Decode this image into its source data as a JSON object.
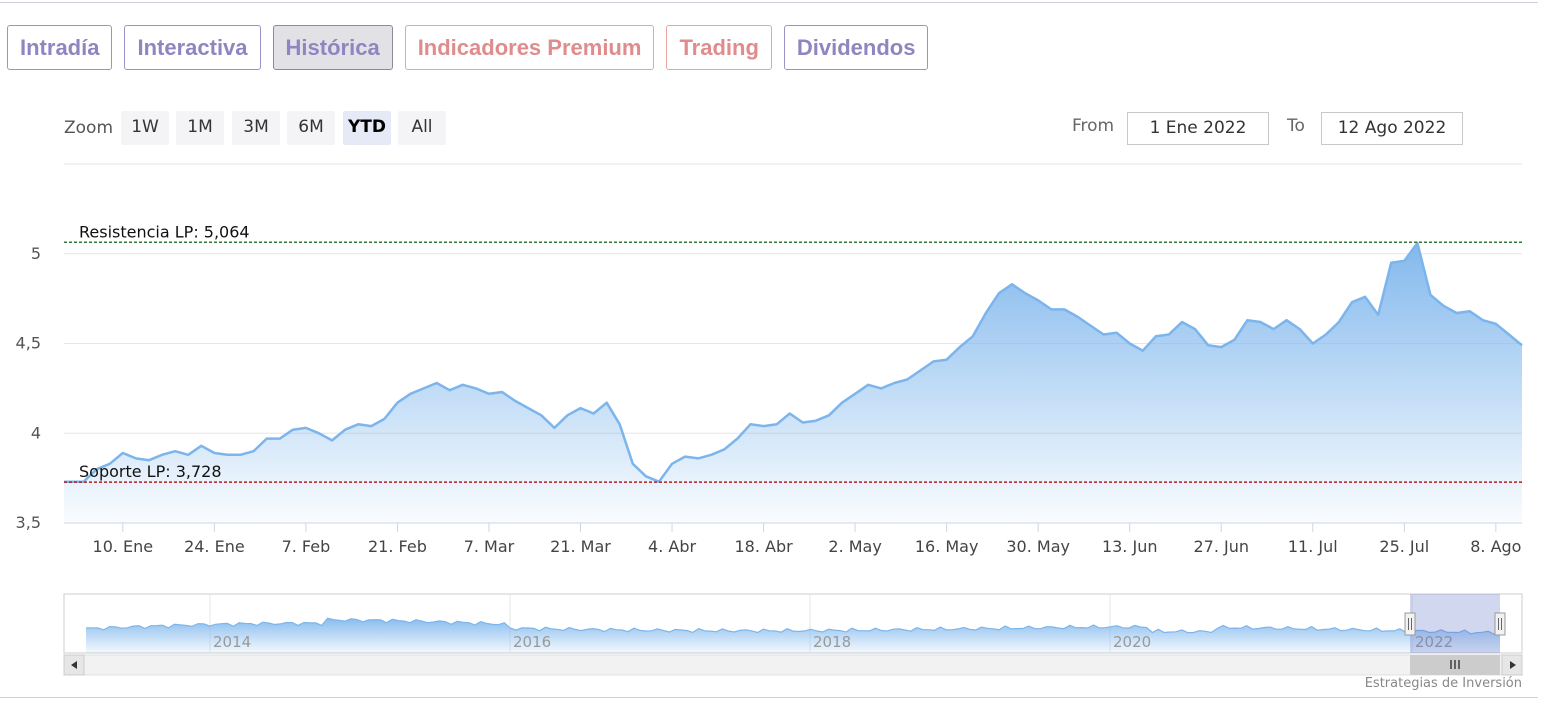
{
  "tabs": [
    {
      "label": "Intradía",
      "active": false,
      "premium": false
    },
    {
      "label": "Interactiva",
      "active": false,
      "premium": false
    },
    {
      "label": "Histórica",
      "active": true,
      "premium": false
    },
    {
      "label": "Indicadores Premium",
      "active": false,
      "premium": true
    },
    {
      "label": "Trading",
      "active": false,
      "premium": true
    },
    {
      "label": "Dividendos",
      "active": false,
      "premium": false
    }
  ],
  "zoom": {
    "label": "Zoom",
    "options": [
      "1W",
      "1M",
      "3M",
      "6M",
      "YTD",
      "All"
    ],
    "selected": "YTD"
  },
  "range": {
    "from_label": "From",
    "from_value": "1 Ene 2022",
    "to_label": "To",
    "to_value": "12 Ago 2022"
  },
  "credits": "Estrategias de Inversión",
  "colors": {
    "series": "#7cb5ec",
    "resistance": "#2e7d32",
    "support": "#b71c1c",
    "tab_text": "#8d86c0",
    "tab_premium": "#e08c8c"
  },
  "chart_data": {
    "type": "area",
    "title": "",
    "xlabel": "",
    "ylabel": "",
    "ylim": [
      3.5,
      5.5
    ],
    "yticks": [
      {
        "value": 3.5,
        "label": "3,5"
      },
      {
        "value": 4.0,
        "label": "4"
      },
      {
        "value": 4.5,
        "label": "4,5"
      },
      {
        "value": 5.0,
        "label": "5"
      }
    ],
    "xlim": [
      "2022-01-01",
      "2022-08-12"
    ],
    "xticks": [
      {
        "date": "2022-01-10",
        "label": "10. Ene"
      },
      {
        "date": "2022-01-24",
        "label": "24. Ene"
      },
      {
        "date": "2022-02-07",
        "label": "7. Feb"
      },
      {
        "date": "2022-02-21",
        "label": "21. Feb"
      },
      {
        "date": "2022-03-07",
        "label": "7. Mar"
      },
      {
        "date": "2022-03-21",
        "label": "21. Mar"
      },
      {
        "date": "2022-04-04",
        "label": "4. Abr"
      },
      {
        "date": "2022-04-18",
        "label": "18. Abr"
      },
      {
        "date": "2022-05-02",
        "label": "2. May"
      },
      {
        "date": "2022-05-16",
        "label": "16. May"
      },
      {
        "date": "2022-05-30",
        "label": "30. May"
      },
      {
        "date": "2022-06-13",
        "label": "13. Jun"
      },
      {
        "date": "2022-06-27",
        "label": "27. Jun"
      },
      {
        "date": "2022-07-11",
        "label": "11. Jul"
      },
      {
        "date": "2022-07-25",
        "label": "25. Jul"
      },
      {
        "date": "2022-08-08",
        "label": "8. Ago"
      }
    ],
    "grid": true,
    "series": [
      {
        "name": "",
        "points": [
          [
            "2022-01-01",
            3.73
          ],
          [
            "2022-01-04",
            3.73
          ],
          [
            "2022-01-06",
            3.8
          ],
          [
            "2022-01-08",
            3.83
          ],
          [
            "2022-01-10",
            3.89
          ],
          [
            "2022-01-12",
            3.86
          ],
          [
            "2022-01-14",
            3.85
          ],
          [
            "2022-01-16",
            3.88
          ],
          [
            "2022-01-18",
            3.9
          ],
          [
            "2022-01-20",
            3.88
          ],
          [
            "2022-01-22",
            3.93
          ],
          [
            "2022-01-24",
            3.89
          ],
          [
            "2022-01-26",
            3.88
          ],
          [
            "2022-01-28",
            3.88
          ],
          [
            "2022-01-30",
            3.9
          ],
          [
            "2022-02-01",
            3.97
          ],
          [
            "2022-02-03",
            3.97
          ],
          [
            "2022-02-05",
            4.02
          ],
          [
            "2022-02-07",
            4.03
          ],
          [
            "2022-02-09",
            4.0
          ],
          [
            "2022-02-11",
            3.96
          ],
          [
            "2022-02-13",
            4.02
          ],
          [
            "2022-02-15",
            4.05
          ],
          [
            "2022-02-17",
            4.04
          ],
          [
            "2022-02-19",
            4.08
          ],
          [
            "2022-02-21",
            4.17
          ],
          [
            "2022-02-23",
            4.22
          ],
          [
            "2022-02-25",
            4.25
          ],
          [
            "2022-02-27",
            4.28
          ],
          [
            "2022-03-01",
            4.24
          ],
          [
            "2022-03-03",
            4.27
          ],
          [
            "2022-03-05",
            4.25
          ],
          [
            "2022-03-07",
            4.22
          ],
          [
            "2022-03-09",
            4.23
          ],
          [
            "2022-03-11",
            4.18
          ],
          [
            "2022-03-13",
            4.14
          ],
          [
            "2022-03-15",
            4.1
          ],
          [
            "2022-03-17",
            4.03
          ],
          [
            "2022-03-19",
            4.1
          ],
          [
            "2022-03-21",
            4.14
          ],
          [
            "2022-03-23",
            4.11
          ],
          [
            "2022-03-25",
            4.17
          ],
          [
            "2022-03-27",
            4.05
          ],
          [
            "2022-03-29",
            3.83
          ],
          [
            "2022-03-31",
            3.76
          ],
          [
            "2022-04-02",
            3.73
          ],
          [
            "2022-04-04",
            3.83
          ],
          [
            "2022-04-06",
            3.87
          ],
          [
            "2022-04-08",
            3.86
          ],
          [
            "2022-04-10",
            3.88
          ],
          [
            "2022-04-12",
            3.91
          ],
          [
            "2022-04-14",
            3.97
          ],
          [
            "2022-04-16",
            4.05
          ],
          [
            "2022-04-18",
            4.04
          ],
          [
            "2022-04-20",
            4.05
          ],
          [
            "2022-04-22",
            4.11
          ],
          [
            "2022-04-24",
            4.06
          ],
          [
            "2022-04-26",
            4.07
          ],
          [
            "2022-04-28",
            4.1
          ],
          [
            "2022-04-30",
            4.17
          ],
          [
            "2022-05-02",
            4.22
          ],
          [
            "2022-05-04",
            4.27
          ],
          [
            "2022-05-06",
            4.25
          ],
          [
            "2022-05-08",
            4.28
          ],
          [
            "2022-05-10",
            4.3
          ],
          [
            "2022-05-12",
            4.35
          ],
          [
            "2022-05-14",
            4.4
          ],
          [
            "2022-05-16",
            4.41
          ],
          [
            "2022-05-18",
            4.48
          ],
          [
            "2022-05-20",
            4.54
          ],
          [
            "2022-05-22",
            4.67
          ],
          [
            "2022-05-24",
            4.78
          ],
          [
            "2022-05-26",
            4.83
          ],
          [
            "2022-05-28",
            4.78
          ],
          [
            "2022-05-30",
            4.74
          ],
          [
            "2022-06-01",
            4.69
          ],
          [
            "2022-06-03",
            4.69
          ],
          [
            "2022-06-05",
            4.65
          ],
          [
            "2022-06-07",
            4.6
          ],
          [
            "2022-06-09",
            4.55
          ],
          [
            "2022-06-11",
            4.56
          ],
          [
            "2022-06-13",
            4.5
          ],
          [
            "2022-06-15",
            4.46
          ],
          [
            "2022-06-17",
            4.54
          ],
          [
            "2022-06-19",
            4.55
          ],
          [
            "2022-06-21",
            4.62
          ],
          [
            "2022-06-23",
            4.58
          ],
          [
            "2022-06-25",
            4.49
          ],
          [
            "2022-06-27",
            4.48
          ],
          [
            "2022-06-29",
            4.52
          ],
          [
            "2022-07-01",
            4.63
          ],
          [
            "2022-07-03",
            4.62
          ],
          [
            "2022-07-05",
            4.58
          ],
          [
            "2022-07-07",
            4.63
          ],
          [
            "2022-07-09",
            4.58
          ],
          [
            "2022-07-11",
            4.5
          ],
          [
            "2022-07-13",
            4.55
          ],
          [
            "2022-07-15",
            4.62
          ],
          [
            "2022-07-17",
            4.73
          ],
          [
            "2022-07-19",
            4.76
          ],
          [
            "2022-07-21",
            4.66
          ],
          [
            "2022-07-23",
            4.95
          ],
          [
            "2022-07-25",
            4.96
          ],
          [
            "2022-07-27",
            5.06
          ],
          [
            "2022-07-29",
            4.77
          ],
          [
            "2022-07-31",
            4.71
          ],
          [
            "2022-08-02",
            4.67
          ],
          [
            "2022-08-04",
            4.68
          ],
          [
            "2022-08-06",
            4.63
          ],
          [
            "2022-08-08",
            4.61
          ],
          [
            "2022-08-10",
            4.55
          ],
          [
            "2022-08-12",
            4.49
          ]
        ]
      }
    ],
    "plot_lines": [
      {
        "label": "Resistencia LP: 5,064",
        "value": 5.064
      },
      {
        "label": "Soporte LP: 3,728",
        "value": 3.728
      }
    ],
    "navigator": {
      "labels": [
        "2014",
        "2016",
        "2018",
        "2020",
        "2022"
      ]
    }
  }
}
